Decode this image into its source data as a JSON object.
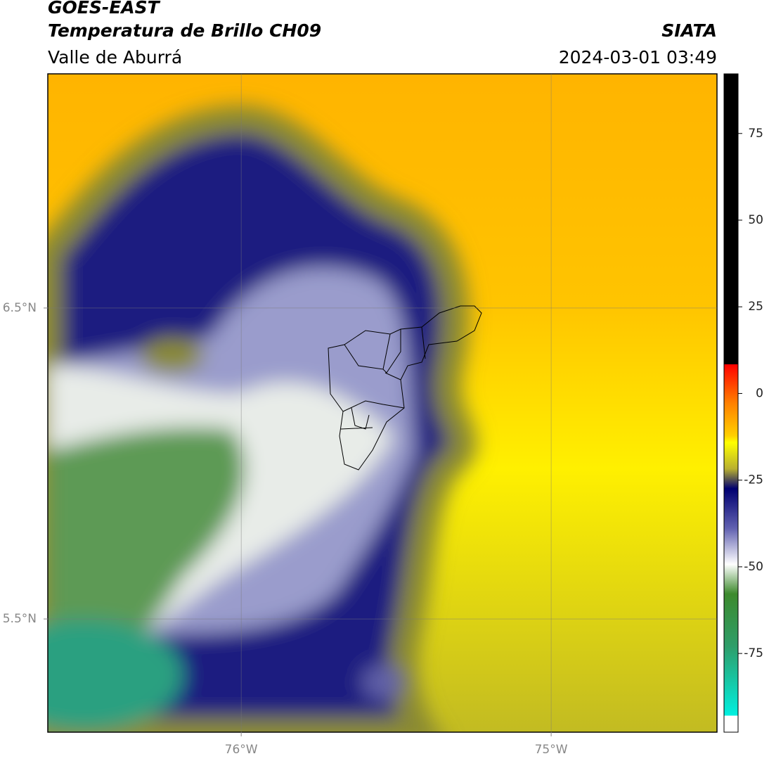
{
  "header": {
    "satellite": "GOES-EAST",
    "product": "Temperatura de Brillo CH09",
    "region": "Valle de Aburrá",
    "agency": "SIATA",
    "datetime": "2024-03-01 03:49"
  },
  "map": {
    "xlim": [
      -76.624,
      -74.465
    ],
    "ylim": [
      5.136,
      7.253
    ],
    "xticks": [
      {
        "value": -76,
        "label": "76°W"
      },
      {
        "value": -75,
        "label": "75°W"
      }
    ],
    "yticks": [
      {
        "value": 6.5,
        "label": "6.5°N"
      },
      {
        "value": 5.5,
        "label": "5.5°N"
      }
    ],
    "grid": true
  },
  "colorbar": {
    "lim": [
      -97.7,
      92.2
    ],
    "ticks": [
      -75,
      -50,
      -25,
      0,
      25,
      50,
      75
    ]
  }
}
